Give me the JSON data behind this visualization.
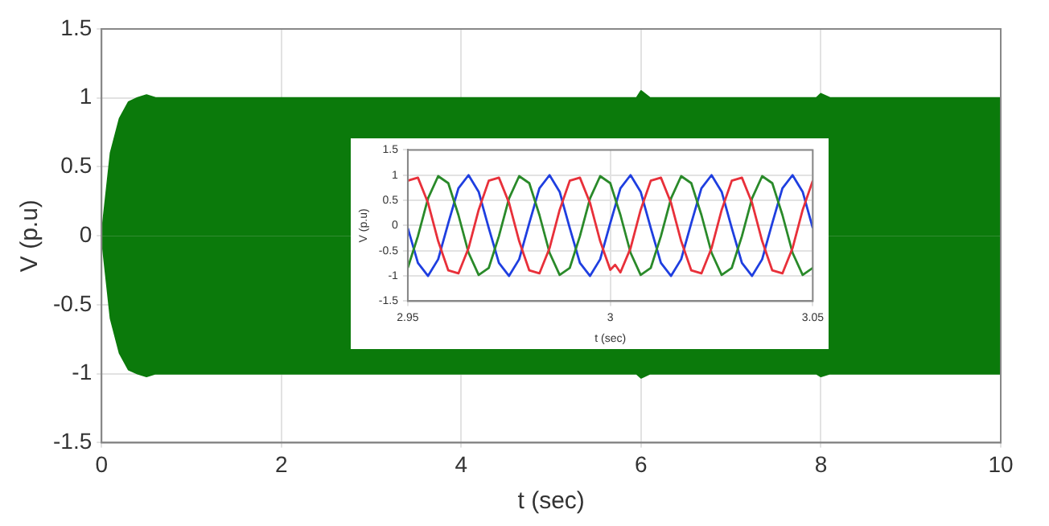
{
  "chart_data": [
    {
      "type": "area",
      "xlabel": "t (sec)",
      "ylabel": "V (p.u)",
      "xlim": [
        0,
        10
      ],
      "ylim": [
        -1.5,
        1.5
      ],
      "xticks": [
        0,
        2,
        4,
        6,
        8,
        10
      ],
      "yticks": [
        -1.5,
        -1,
        -0.5,
        0,
        0.5,
        1,
        1.5
      ],
      "grid": true,
      "marker": "none",
      "x": [
        0,
        0.1,
        0.2,
        0.3,
        0.4,
        0.5,
        0.6,
        1,
        2,
        3,
        4,
        5,
        5.95,
        6,
        6.1,
        7,
        7.95,
        8,
        8.1,
        9,
        10
      ],
      "series": [
        {
          "color": "#0b7a0b",
          "values": [
            0,
            0.6,
            0.85,
            0.97,
            1,
            1.02,
            1,
            1,
            1,
            1,
            1,
            1,
            1,
            1.05,
            1,
            1,
            1,
            1.03,
            1,
            1,
            1
          ]
        },
        {
          "color": "#0b7a0b",
          "values": [
            0,
            -0.6,
            -0.85,
            -0.97,
            -1,
            -1.02,
            -1,
            -1,
            -1,
            -1,
            -1,
            -1,
            -1,
            -1.03,
            -1,
            -1,
            -1,
            -1.02,
            -1,
            -1,
            -1
          ]
        }
      ]
    },
    {
      "type": "line",
      "xlabel": "t (sec)",
      "ylabel": "V (p.u)",
      "xlim": [
        2.95,
        3.05
      ],
      "ylim": [
        -1.5,
        1.5
      ],
      "xticks": [
        2.95,
        3,
        3.05
      ],
      "yticks": [
        -1.5,
        -1,
        -0.5,
        0,
        0.5,
        1,
        1.5
      ],
      "grid": true,
      "marker": "none",
      "x": [
        2.95,
        2.9525,
        2.955,
        2.9575,
        2.96,
        2.9625,
        2.965,
        2.9675,
        2.97,
        2.9725,
        2.975,
        2.9775,
        2.98,
        2.9825,
        2.985,
        2.9875,
        2.99,
        2.9925,
        2.995,
        2.9975,
        3,
        3.0025,
        3.005,
        3.0075,
        3.01,
        3.0125,
        3.015,
        3.0175,
        3.02,
        3.0225,
        3.025,
        3.0275,
        3.03,
        3.0325,
        3.035,
        3.0375,
        3.04,
        3.0425,
        3.045,
        3.0475,
        3.05
      ],
      "series": [
        {
          "color": "#e8303a",
          "x": [
            2.95,
            2.9525,
            2.955,
            2.9575,
            2.96,
            2.9625,
            2.965,
            2.9675,
            2.97,
            2.9725,
            2.975,
            2.9775,
            2.98,
            2.9825,
            2.985,
            2.9875,
            2.99,
            2.9925,
            2.995,
            2.9975,
            3,
            3.0012,
            3.0025,
            3.005,
            3.0075,
            3.01,
            3.0125,
            3.015,
            3.0175,
            3.02,
            3.0225,
            3.025,
            3.0275,
            3.03,
            3.0325,
            3.035,
            3.0375,
            3.04,
            3.0425,
            3.045,
            3.0475,
            3.05
          ],
          "values": [
            0.89,
            0.95,
            0.45,
            -0.31,
            -0.89,
            -0.95,
            -0.45,
            0.31,
            0.89,
            0.95,
            0.45,
            -0.31,
            -0.89,
            -0.95,
            -0.45,
            0.31,
            0.89,
            0.95,
            0.45,
            -0.31,
            -0.88,
            -0.78,
            -0.93,
            -0.45,
            0.31,
            0.89,
            0.95,
            0.45,
            -0.31,
            -0.89,
            -0.95,
            -0.45,
            0.31,
            0.89,
            0.95,
            0.45,
            -0.31,
            -0.89,
            -0.95,
            -0.45,
            0.31,
            0.89
          ]
        },
        {
          "color": "#2a8a2a",
          "values": [
            -0.84,
            -0.21,
            0.54,
            0.98,
            0.84,
            0.21,
            -0.54,
            -0.98,
            -0.84,
            -0.21,
            0.54,
            0.98,
            0.84,
            0.21,
            -0.54,
            -0.98,
            -0.84,
            -0.21,
            0.54,
            0.98,
            0.84,
            0.21,
            -0.54,
            -0.98,
            -0.84,
            -0.21,
            0.54,
            0.98,
            0.84,
            0.21,
            -0.54,
            -0.98,
            -0.84,
            -0.21,
            0.54,
            0.98,
            0.84,
            0.21,
            -0.54,
            -0.98,
            -0.84
          ]
        },
        {
          "color": "#1f3fe0",
          "values": [
            -0.05,
            -0.74,
            -1,
            -0.67,
            0.05,
            0.74,
            1,
            0.67,
            -0.05,
            -0.74,
            -1,
            -0.67,
            0.05,
            0.74,
            1,
            0.67,
            -0.05,
            -0.74,
            -1,
            -0.67,
            0.05,
            0.74,
            1,
            0.67,
            -0.05,
            -0.74,
            -1,
            -0.67,
            0.05,
            0.74,
            1,
            0.67,
            -0.05,
            -0.74,
            -1,
            -0.67,
            0.05,
            0.74,
            1,
            0.67,
            -0.05
          ]
        }
      ]
    }
  ]
}
